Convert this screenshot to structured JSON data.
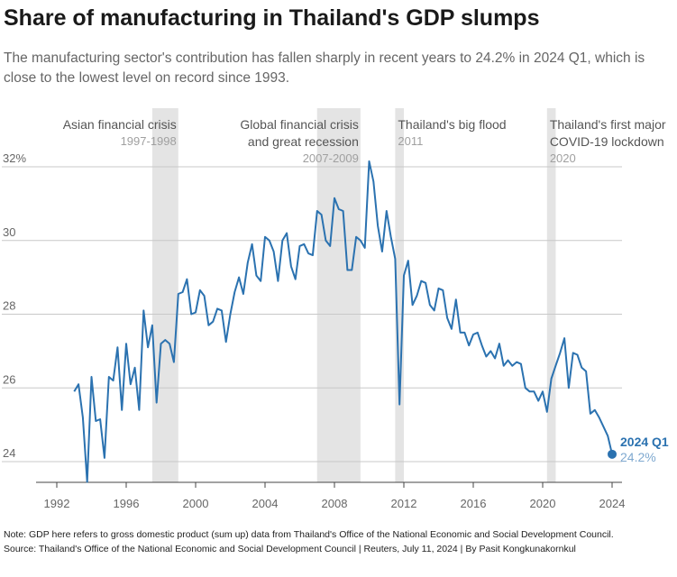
{
  "title": "Share of manufacturing in Thailand's GDP slumps",
  "subtitle": "The manufacturing sector's contribution has fallen sharply in recent years to 24.2% in 2024 Q1, which is close to the lowest level on record since 1993.",
  "note": "Note: GDP here refers to gross domestic product (sum up) data from Thailand's Office of the National Economic and Social Development Council.",
  "source": "Source: Thailand's Office of the National Economic and Social Development Council | Reuters, July 11, 2024 | By Pasit Kongkunakornkul",
  "colors": {
    "line": "#2b72b0",
    "band": "#e4e4e4",
    "grid": "#c8c8c8",
    "last_value": "#7fa9d0"
  },
  "chart_data": {
    "type": "line",
    "x_ticks": [
      1992,
      1996,
      2000,
      2004,
      2008,
      2012,
      2016,
      2020,
      2024
    ],
    "y_ticks": [
      {
        "value": 32,
        "label": "32%"
      },
      {
        "value": 30,
        "label": "30"
      },
      {
        "value": 28,
        "label": "28"
      },
      {
        "value": 26,
        "label": "26"
      },
      {
        "value": 24,
        "label": "24"
      }
    ],
    "xlim": [
      1991.5,
      2025
    ],
    "ylim": [
      23.4,
      32.2
    ],
    "grid": "horizontal",
    "events": [
      {
        "name": "Asian financial crisis",
        "name2": "",
        "period": "1997-1998",
        "start": 1997.5,
        "end": 1999.0
      },
      {
        "name": "Global financial crisis",
        "name2": "and great recession",
        "period": "2007-2009",
        "start": 2007.0,
        "end": 2009.5
      },
      {
        "name": "Thailand's big flood",
        "name2": "",
        "period": "2011",
        "start": 2011.5,
        "end": 2012.0
      },
      {
        "name": "Thailand's first major",
        "name2": "COVID-19 lockdown",
        "period": "2020",
        "start": 2020.25,
        "end": 2020.75
      }
    ],
    "last_point": {
      "label": "2024 Q1",
      "value_label": "24.2%",
      "x": 2024.0,
      "y": 24.2
    },
    "series": [
      {
        "points": [
          [
            1993.0,
            25.9
          ],
          [
            1993.25,
            26.1
          ],
          [
            1993.5,
            25.2
          ],
          [
            1993.75,
            23.45
          ],
          [
            1994.0,
            26.3
          ],
          [
            1994.25,
            25.1
          ],
          [
            1994.5,
            25.15
          ],
          [
            1994.75,
            24.1
          ],
          [
            1995.0,
            26.3
          ],
          [
            1995.25,
            26.2
          ],
          [
            1995.5,
            27.1
          ],
          [
            1995.75,
            25.4
          ],
          [
            1996.0,
            27.2
          ],
          [
            1996.25,
            26.1
          ],
          [
            1996.5,
            26.55
          ],
          [
            1996.75,
            25.4
          ],
          [
            1997.0,
            28.1
          ],
          [
            1997.25,
            27.1
          ],
          [
            1997.5,
            27.7
          ],
          [
            1997.75,
            25.6
          ],
          [
            1998.0,
            27.2
          ],
          [
            1998.25,
            27.3
          ],
          [
            1998.5,
            27.2
          ],
          [
            1998.75,
            26.7
          ],
          [
            1999.0,
            28.55
          ],
          [
            1999.25,
            28.6
          ],
          [
            1999.5,
            28.95
          ],
          [
            1999.75,
            28.0
          ],
          [
            2000.0,
            28.05
          ],
          [
            2000.25,
            28.65
          ],
          [
            2000.5,
            28.5
          ],
          [
            2000.75,
            27.7
          ],
          [
            2001.0,
            27.8
          ],
          [
            2001.25,
            28.15
          ],
          [
            2001.5,
            28.1
          ],
          [
            2001.75,
            27.25
          ],
          [
            2002.0,
            28.0
          ],
          [
            2002.25,
            28.6
          ],
          [
            2002.5,
            29.0
          ],
          [
            2002.75,
            28.55
          ],
          [
            2003.0,
            29.4
          ],
          [
            2003.25,
            29.9
          ],
          [
            2003.5,
            29.05
          ],
          [
            2003.75,
            28.9
          ],
          [
            2004.0,
            30.1
          ],
          [
            2004.25,
            30.0
          ],
          [
            2004.5,
            29.7
          ],
          [
            2004.75,
            28.9
          ],
          [
            2005.0,
            30.0
          ],
          [
            2005.25,
            30.2
          ],
          [
            2005.5,
            29.3
          ],
          [
            2005.75,
            28.95
          ],
          [
            2006.0,
            29.85
          ],
          [
            2006.25,
            29.9
          ],
          [
            2006.5,
            29.65
          ],
          [
            2006.75,
            29.6
          ],
          [
            2007.0,
            30.8
          ],
          [
            2007.25,
            30.7
          ],
          [
            2007.5,
            30.0
          ],
          [
            2007.75,
            29.85
          ],
          [
            2008.0,
            31.15
          ],
          [
            2008.25,
            30.85
          ],
          [
            2008.5,
            30.8
          ],
          [
            2008.75,
            29.2
          ],
          [
            2009.0,
            29.2
          ],
          [
            2009.25,
            30.1
          ],
          [
            2009.5,
            30.0
          ],
          [
            2009.75,
            29.8
          ],
          [
            2010.0,
            32.15
          ],
          [
            2010.25,
            31.6
          ],
          [
            2010.5,
            30.4
          ],
          [
            2010.75,
            29.7
          ],
          [
            2011.0,
            30.8
          ],
          [
            2011.25,
            30.1
          ],
          [
            2011.5,
            29.5
          ],
          [
            2011.75,
            25.55
          ],
          [
            2012.0,
            29.05
          ],
          [
            2012.25,
            29.45
          ],
          [
            2012.5,
            28.25
          ],
          [
            2012.75,
            28.5
          ],
          [
            2013.0,
            28.9
          ],
          [
            2013.25,
            28.85
          ],
          [
            2013.5,
            28.25
          ],
          [
            2013.75,
            28.1
          ],
          [
            2014.0,
            28.7
          ],
          [
            2014.25,
            28.65
          ],
          [
            2014.5,
            27.9
          ],
          [
            2014.75,
            27.6
          ],
          [
            2015.0,
            28.4
          ],
          [
            2015.25,
            27.5
          ],
          [
            2015.5,
            27.5
          ],
          [
            2015.75,
            27.15
          ],
          [
            2016.0,
            27.45
          ],
          [
            2016.25,
            27.5
          ],
          [
            2016.5,
            27.15
          ],
          [
            2016.75,
            26.85
          ],
          [
            2017.0,
            27.0
          ],
          [
            2017.25,
            26.8
          ],
          [
            2017.5,
            27.2
          ],
          [
            2017.75,
            26.6
          ],
          [
            2018.0,
            26.75
          ],
          [
            2018.25,
            26.6
          ],
          [
            2018.5,
            26.7
          ],
          [
            2018.75,
            26.65
          ],
          [
            2019.0,
            26.0
          ],
          [
            2019.25,
            25.9
          ],
          [
            2019.5,
            25.9
          ],
          [
            2019.75,
            25.65
          ],
          [
            2020.0,
            25.9
          ],
          [
            2020.25,
            25.35
          ],
          [
            2020.5,
            26.25
          ],
          [
            2020.75,
            26.6
          ],
          [
            2021.0,
            26.95
          ],
          [
            2021.25,
            27.35
          ],
          [
            2021.5,
            26.0
          ],
          [
            2021.75,
            26.95
          ],
          [
            2022.0,
            26.9
          ],
          [
            2022.25,
            26.55
          ],
          [
            2022.5,
            26.45
          ],
          [
            2022.75,
            25.3
          ],
          [
            2023.0,
            25.4
          ],
          [
            2023.25,
            25.2
          ],
          [
            2023.5,
            24.95
          ],
          [
            2023.75,
            24.7
          ],
          [
            2024.0,
            24.2
          ]
        ]
      }
    ]
  }
}
